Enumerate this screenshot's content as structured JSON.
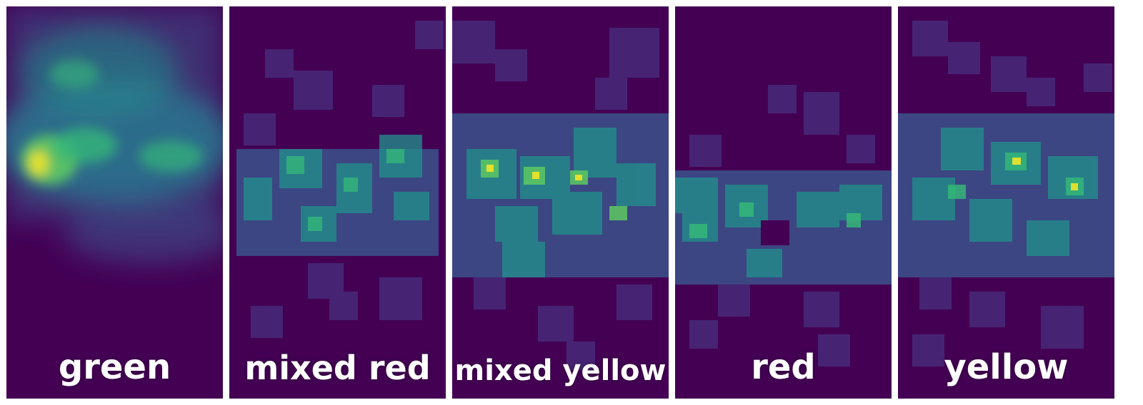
{
  "panels": [
    {
      "label": "green"
    },
    {
      "label": "mixed red"
    },
    {
      "label": "mixed yellow"
    },
    {
      "label": "red"
    },
    {
      "label": "yellow"
    }
  ],
  "colors": {
    "background": "#440154",
    "dim": "#472d7b",
    "mid": "#3b528b",
    "teal": "#21918c",
    "green": "#35b779",
    "yellow": "#fde725"
  }
}
